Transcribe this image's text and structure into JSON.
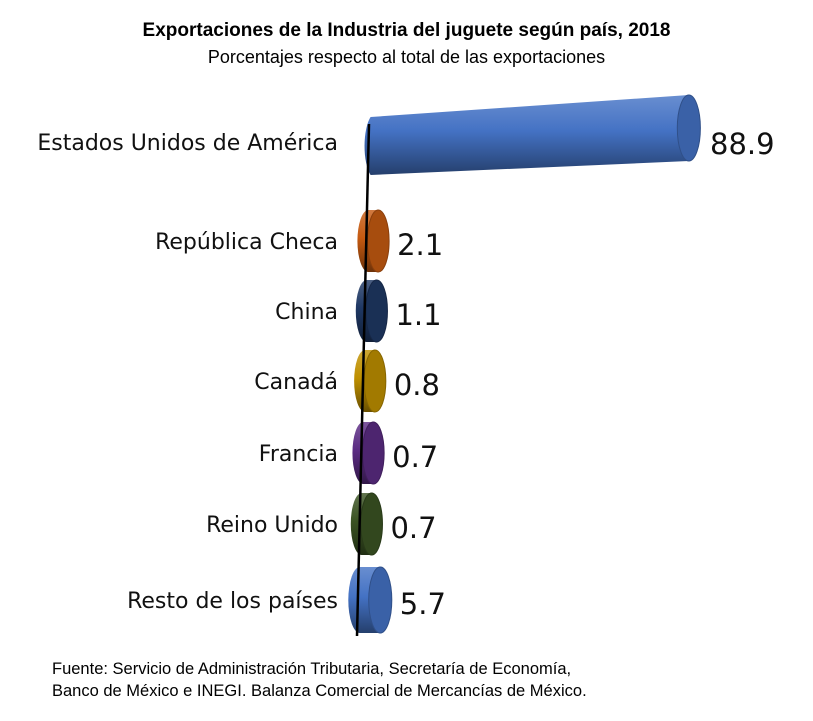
{
  "chart_data": {
    "type": "bar",
    "orientation": "horizontal",
    "style": "3d-cylinder",
    "title": "Exportaciones de la Industria del juguete según país, 2018",
    "subtitle": "Porcentajes respecto al total de las exportaciones",
    "xlabel": "",
    "ylabel": "",
    "xlim": [
      0,
      100
    ],
    "grid": false,
    "legend": null,
    "categories": [
      "Estados Unidos de América",
      "República Checa",
      "China",
      "Canadá",
      "Francia",
      "Reino Unido",
      "Resto de los países"
    ],
    "values": [
      88.9,
      2.1,
      1.1,
      0.8,
      0.7,
      0.7,
      5.7
    ],
    "value_labels": [
      "88.9",
      "2.1",
      "1.1",
      "0.8",
      "0.7",
      "0.7",
      "5.7"
    ],
    "colors": [
      "#4472C4",
      "#C55A11",
      "#1F3864",
      "#BF9000",
      "#5B2C83",
      "#3B5323",
      "#4472C4"
    ]
  },
  "source": {
    "line1": "Fuente: Servicio de Administración Tributaria, Secretaría de Economía,",
    "line2": "Banco de México e INEGI. Balanza Comercial de Mercancías de México."
  }
}
